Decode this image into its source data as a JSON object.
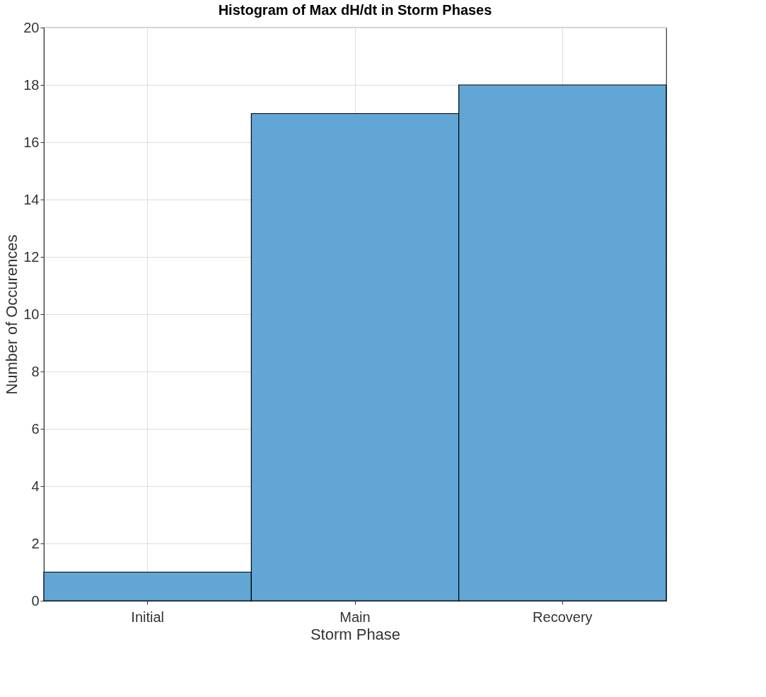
{
  "chart_data": {
    "type": "bar",
    "title": "Histogram of Max dH/dt in Storm Phases",
    "xlabel": "Storm Phase",
    "ylabel": "Number of Occurences",
    "categories": [
      "Initial",
      "Main",
      "Recovery"
    ],
    "values": [
      1,
      17,
      18
    ],
    "color": "#62a6d6",
    "ylim": [
      0,
      20
    ],
    "yticks": [
      0,
      2,
      4,
      6,
      8,
      10,
      12,
      14,
      16,
      18,
      20
    ],
    "grid": true
  }
}
